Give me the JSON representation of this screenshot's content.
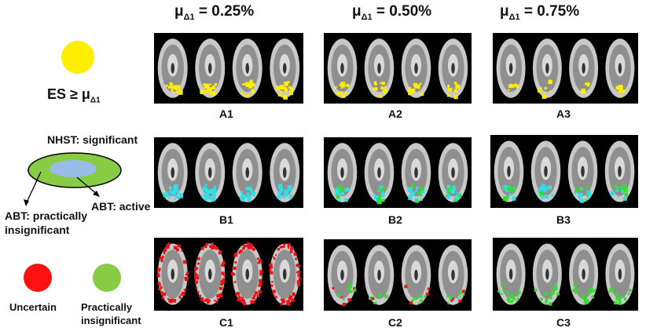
{
  "columns": [
    {
      "mu": "μ",
      "sub": "Δ1",
      "value": " = 0.25%"
    },
    {
      "mu": "μ",
      "sub": "Δ1",
      "value": " = 0.50%"
    },
    {
      "mu": "μ",
      "sub": "Δ1",
      "value": " = 0.75%"
    }
  ],
  "panel_labels": {
    "row_a": [
      "A1",
      "A2",
      "A3"
    ],
    "row_b": [
      "B1",
      "B2",
      "B3"
    ],
    "row_c": [
      "C1",
      "C2",
      "C3"
    ]
  },
  "legend": {
    "es_label": "ES ≥ μ",
    "es_sub": "Δ1",
    "nhst_label": "NHST: significant",
    "abt_active": "ABT: active",
    "abt_insig_line1": "ABT: practically",
    "abt_insig_line2": "insignificant",
    "uncertain": "Uncertain",
    "practically_line1": "Practically",
    "practically_line2": "insignificant"
  },
  "colors": {
    "yellow": "#ffee00",
    "cyan": "#33dde6",
    "green": "#33dd33",
    "red": "#ee1111",
    "legend_green": "#88cc44",
    "legend_blue": "#99bbe6",
    "legend_red": "#ff1111"
  }
}
